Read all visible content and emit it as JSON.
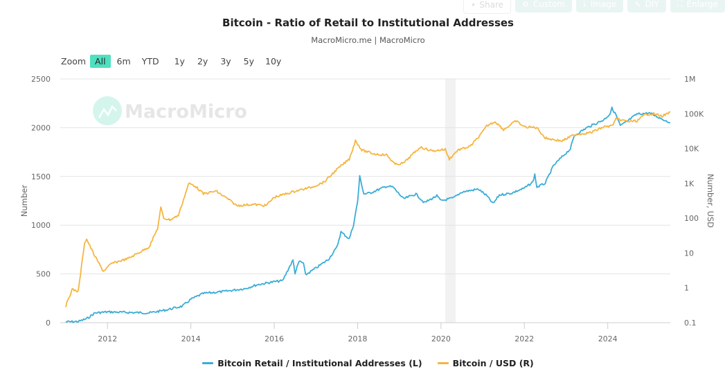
{
  "toolbar": {
    "buttons": [
      {
        "label": "Share",
        "icon": "share-icon"
      },
      {
        "label": "Custom",
        "icon": "gear-icon"
      },
      {
        "label": "Image",
        "icon": "download-icon"
      },
      {
        "label": "DIY",
        "icon": "pencil-icon"
      },
      {
        "label": "Enlarge",
        "icon": "expand-icon"
      }
    ]
  },
  "zoom": {
    "label": "Zoom",
    "options": [
      "All",
      "6m",
      "YTD",
      "1y",
      "2y",
      "3y",
      "5y",
      "10y"
    ],
    "selected": "All"
  },
  "watermark": "MacroMicro",
  "colors": {
    "series_left": "#3aacd6",
    "series_right": "#f5b53f",
    "zoom_active": "#4fe0c0",
    "grid": "#e3e3e3",
    "shade": "#f2f2f2"
  },
  "chart_data": {
    "type": "line",
    "title": "Bitcoin - Ratio of Retail to Institutional Addresses",
    "subtitle": "MacroMicro.me | MacroMicro",
    "xlabel": "",
    "ylabel_left": "Number",
    "ylabel_right": "Number, USD",
    "x_ticks": [
      "2012",
      "2014",
      "2016",
      "2018",
      "2020",
      "2022",
      "2024"
    ],
    "x_range": [
      2011.0,
      2025.5
    ],
    "y_left": {
      "range": [
        0,
        2500
      ],
      "ticks": [
        "0",
        "500",
        "1000",
        "1500",
        "2000",
        "2500"
      ],
      "tick_values": [
        0,
        500,
        1000,
        1500,
        2000,
        2500
      ],
      "scale": "linear"
    },
    "y_right": {
      "range": [
        0.1,
        1000000
      ],
      "ticks": [
        "0.1",
        "1",
        "10",
        "100",
        "1K",
        "10K",
        "100K",
        "1M"
      ],
      "tick_values": [
        0.1,
        1,
        10,
        100,
        1000,
        10000,
        100000,
        1000000
      ],
      "scale": "log"
    },
    "shaded_band": {
      "from": 2020.1,
      "to": 2020.35
    },
    "grid": true,
    "legend_position": "bottom-center",
    "series": [
      {
        "name": "Bitcoin Retail / Institutional Addresses (L)",
        "axis": "left",
        "points": [
          [
            2011.0,
            8
          ],
          [
            2011.3,
            12
          ],
          [
            2011.5,
            40
          ],
          [
            2011.7,
            100
          ],
          [
            2012.0,
            110
          ],
          [
            2012.5,
            105
          ],
          [
            2013.0,
            100
          ],
          [
            2013.4,
            130
          ],
          [
            2013.8,
            170
          ],
          [
            2014.0,
            240
          ],
          [
            2014.3,
            300
          ],
          [
            2014.8,
            320
          ],
          [
            2015.3,
            350
          ],
          [
            2015.6,
            390
          ],
          [
            2016.0,
            420
          ],
          [
            2016.2,
            430
          ],
          [
            2016.35,
            560
          ],
          [
            2016.45,
            640
          ],
          [
            2016.5,
            510
          ],
          [
            2016.6,
            630
          ],
          [
            2016.7,
            610
          ],
          [
            2016.75,
            490
          ],
          [
            2017.0,
            560
          ],
          [
            2017.3,
            650
          ],
          [
            2017.5,
            770
          ],
          [
            2017.6,
            930
          ],
          [
            2017.8,
            860
          ],
          [
            2017.9,
            1000
          ],
          [
            2018.0,
            1240
          ],
          [
            2018.05,
            1500
          ],
          [
            2018.15,
            1320
          ],
          [
            2018.3,
            1330
          ],
          [
            2018.7,
            1400
          ],
          [
            2018.85,
            1390
          ],
          [
            2019.1,
            1270
          ],
          [
            2019.4,
            1320
          ],
          [
            2019.6,
            1230
          ],
          [
            2019.9,
            1300
          ],
          [
            2020.0,
            1250
          ],
          [
            2020.3,
            1280
          ],
          [
            2020.5,
            1340
          ],
          [
            2020.9,
            1370
          ],
          [
            2021.1,
            1300
          ],
          [
            2021.25,
            1220
          ],
          [
            2021.4,
            1310
          ],
          [
            2021.7,
            1330
          ],
          [
            2022.0,
            1380
          ],
          [
            2022.2,
            1440
          ],
          [
            2022.25,
            1520
          ],
          [
            2022.3,
            1390
          ],
          [
            2022.5,
            1430
          ],
          [
            2022.7,
            1610
          ],
          [
            2022.9,
            1700
          ],
          [
            2023.1,
            1780
          ],
          [
            2023.2,
            1920
          ],
          [
            2023.5,
            2000
          ],
          [
            2023.9,
            2080
          ],
          [
            2024.05,
            2140
          ],
          [
            2024.1,
            2200
          ],
          [
            2024.2,
            2130
          ],
          [
            2024.3,
            2020
          ],
          [
            2024.45,
            2060
          ],
          [
            2024.7,
            2140
          ],
          [
            2025.0,
            2150
          ],
          [
            2025.3,
            2090
          ],
          [
            2025.5,
            2050
          ]
        ]
      },
      {
        "name": "Bitcoin / USD (R)",
        "axis": "right",
        "points": [
          [
            2011.0,
            0.3
          ],
          [
            2011.15,
            0.9
          ],
          [
            2011.3,
            0.8
          ],
          [
            2011.45,
            20
          ],
          [
            2011.5,
            25
          ],
          [
            2011.7,
            8
          ],
          [
            2011.9,
            3
          ],
          [
            2012.1,
            5
          ],
          [
            2012.5,
            7
          ],
          [
            2013.0,
            15
          ],
          [
            2013.2,
            50
          ],
          [
            2013.28,
            200
          ],
          [
            2013.35,
            100
          ],
          [
            2013.5,
            90
          ],
          [
            2013.7,
            120
          ],
          [
            2013.95,
            1000
          ],
          [
            2014.1,
            850
          ],
          [
            2014.3,
            500
          ],
          [
            2014.6,
            600
          ],
          [
            2014.9,
            350
          ],
          [
            2015.1,
            230
          ],
          [
            2015.5,
            250
          ],
          [
            2015.8,
            230
          ],
          [
            2016.0,
            400
          ],
          [
            2016.5,
            600
          ],
          [
            2016.9,
            780
          ],
          [
            2017.2,
            1100
          ],
          [
            2017.5,
            2500
          ],
          [
            2017.8,
            5000
          ],
          [
            2017.95,
            17000
          ],
          [
            2018.1,
            9000
          ],
          [
            2018.4,
            7000
          ],
          [
            2018.7,
            6500
          ],
          [
            2018.9,
            3500
          ],
          [
            2019.1,
            3800
          ],
          [
            2019.5,
            11000
          ],
          [
            2019.8,
            8500
          ],
          [
            2020.1,
            9500
          ],
          [
            2020.2,
            5000
          ],
          [
            2020.4,
            9000
          ],
          [
            2020.7,
            11500
          ],
          [
            2020.95,
            25000
          ],
          [
            2021.1,
            45000
          ],
          [
            2021.3,
            60000
          ],
          [
            2021.5,
            35000
          ],
          [
            2021.8,
            62000
          ],
          [
            2022.0,
            42000
          ],
          [
            2022.3,
            40000
          ],
          [
            2022.5,
            20000
          ],
          [
            2022.9,
            16500
          ],
          [
            2023.2,
            25000
          ],
          [
            2023.6,
            29000
          ],
          [
            2023.9,
            42000
          ],
          [
            2024.1,
            45000
          ],
          [
            2024.2,
            70000
          ],
          [
            2024.5,
            60000
          ],
          [
            2024.7,
            62000
          ],
          [
            2024.9,
            95000
          ],
          [
            2025.1,
            100000
          ],
          [
            2025.3,
            85000
          ],
          [
            2025.5,
            110000
          ]
        ]
      }
    ]
  },
  "legend": [
    {
      "label": "Bitcoin Retail / Institutional Addresses (L)",
      "color": "#3aacd6"
    },
    {
      "label": "Bitcoin / USD (R)",
      "color": "#f5b53f"
    }
  ]
}
